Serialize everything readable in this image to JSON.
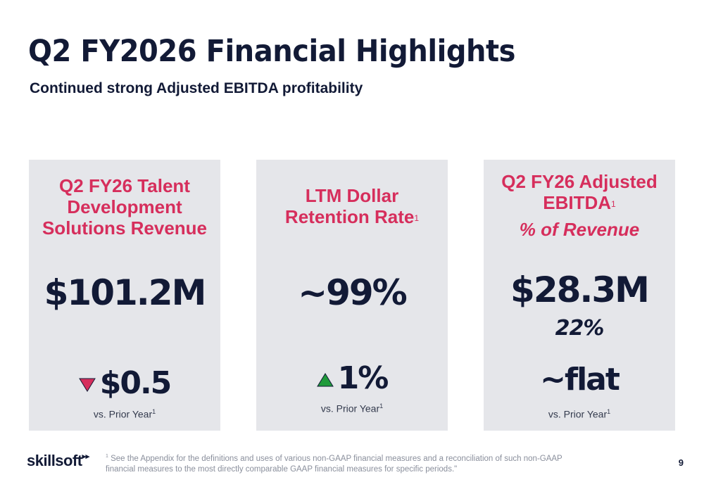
{
  "slide": {
    "title": "Q2 FY2026 Financial Highlights",
    "subtitle": "Continued strong Adjusted EBITDA profitability"
  },
  "cards": [
    {
      "title_lines": [
        "Q2 FY26 Talent",
        "Development",
        "Solutions Revenue"
      ],
      "value": "$101.2M",
      "change": "$0.5",
      "change_direction": "down",
      "change_color": "#d62e5c",
      "vs_label": "vs. Prior Year",
      "vs_sup": "1"
    },
    {
      "title_lines": [
        "LTM Dollar",
        "Retention Rate"
      ],
      "title_sup": "1",
      "value": "~99%",
      "change": "1%",
      "change_direction": "up",
      "change_color": "#1f9a3a",
      "vs_label": "vs. Prior Year",
      "vs_sup": "1"
    },
    {
      "title_lines": [
        "Q2 FY26 Adjusted",
        "EBITDA"
      ],
      "title_sup": "1",
      "title_subline": "% of Revenue",
      "value": "$28.3M",
      "percent": "22%",
      "change": "~flat",
      "vs_label": "vs. Prior Year",
      "vs_sup": "1"
    }
  ],
  "footer": {
    "logo": "skillsoft",
    "footnote_sup": "1",
    "footnote": "See the Appendix for the definitions and uses of various non-GAAP financial measures and a reconciliation of such non-GAAP financial measures to the most directly comparable GAAP financial measures for specific periods.\"",
    "page_number": "9"
  },
  "colors": {
    "accent": "#d62e5c",
    "navy": "#121a36",
    "card_bg": "#e5e6ea"
  }
}
